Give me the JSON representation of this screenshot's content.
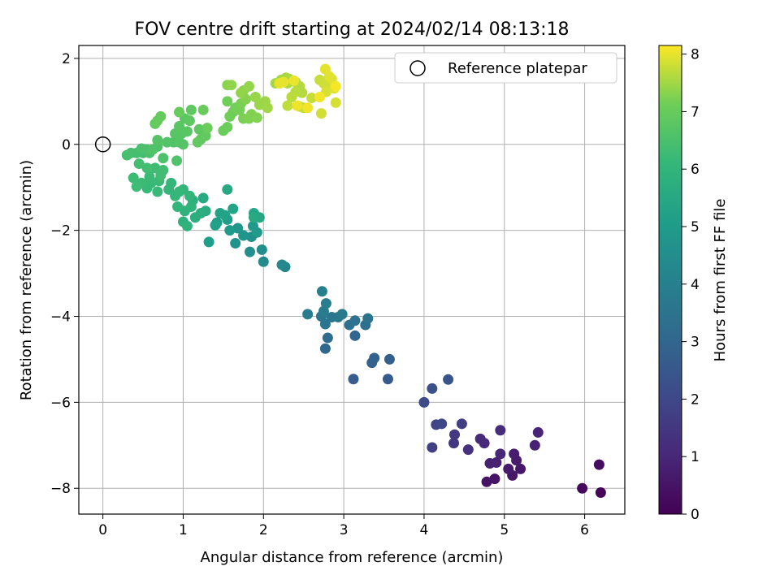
{
  "chart_data": {
    "type": "scatter",
    "title": "FOV centre drift starting at 2024/02/14 08:13:18",
    "xlabel": "Angular distance from reference (arcmin)",
    "ylabel": "Rotation from reference (arcmin)",
    "xlim": [
      -0.3,
      6.5
    ],
    "ylim": [
      -8.6,
      2.3
    ],
    "xticks": [
      "0",
      "1",
      "2",
      "3",
      "4",
      "5",
      "6"
    ],
    "yticks": [
      "−8",
      "−6",
      "−4",
      "−2",
      "0",
      "2"
    ],
    "grid": true,
    "legend": {
      "placement": "top-right",
      "entries": [
        "Reference platepar"
      ]
    },
    "reference_point": {
      "x": 0,
      "y": 0
    },
    "colorbar": {
      "label": "Hours from first FF file",
      "range": [
        0,
        8.15
      ],
      "ticks": [
        "0",
        "1",
        "2",
        "3",
        "4",
        "5",
        "6",
        "7",
        "8"
      ],
      "colormap": "viridis"
    },
    "series": [
      {
        "points": [
          [
            6.2,
            -8.1,
            0.1
          ],
          [
            5.97,
            -8.0,
            0.2
          ],
          [
            6.18,
            -7.45,
            0.3
          ],
          [
            4.78,
            -7.85,
            0.45
          ],
          [
            4.88,
            -7.78,
            0.5
          ],
          [
            5.1,
            -7.7,
            0.55
          ],
          [
            5.2,
            -7.55,
            0.6
          ],
          [
            5.05,
            -7.55,
            0.65
          ],
          [
            5.15,
            -7.35,
            0.7
          ],
          [
            5.12,
            -7.2,
            0.75
          ],
          [
            4.82,
            -7.42,
            0.8
          ],
          [
            4.9,
            -7.4,
            0.85
          ],
          [
            5.38,
            -7.0,
            0.9
          ],
          [
            5.42,
            -6.7,
            0.95
          ],
          [
            4.95,
            -7.2,
            1.0
          ],
          [
            4.75,
            -6.95,
            1.05
          ],
          [
            4.7,
            -6.85,
            1.1
          ],
          [
            4.95,
            -6.65,
            1.15
          ],
          [
            4.55,
            -7.1,
            1.3
          ],
          [
            4.37,
            -6.95,
            1.5
          ],
          [
            4.38,
            -6.75,
            1.55
          ],
          [
            4.47,
            -6.5,
            1.7
          ],
          [
            4.1,
            -7.05,
            1.8
          ],
          [
            4.15,
            -6.52,
            1.9
          ],
          [
            4.22,
            -6.5,
            2.0
          ],
          [
            4.0,
            -6.0,
            2.1
          ],
          [
            4.1,
            -5.68,
            2.3
          ],
          [
            4.3,
            -5.47,
            2.4
          ],
          [
            3.55,
            -5.46,
            2.6
          ],
          [
            3.12,
            -5.46,
            2.7
          ],
          [
            3.57,
            -5.0,
            2.8
          ],
          [
            3.35,
            -5.08,
            2.85
          ],
          [
            3.38,
            -4.97,
            2.9
          ],
          [
            3.14,
            -4.45,
            3.0
          ],
          [
            2.77,
            -4.75,
            3.1
          ],
          [
            2.8,
            -4.5,
            3.2
          ],
          [
            3.27,
            -4.2,
            3.3
          ],
          [
            3.07,
            -4.2,
            3.4
          ],
          [
            3.14,
            -4.1,
            3.45
          ],
          [
            3.3,
            -4.05,
            3.5
          ],
          [
            2.77,
            -4.18,
            3.55
          ],
          [
            2.72,
            -4.0,
            3.6
          ],
          [
            2.85,
            -4.02,
            3.65
          ],
          [
            2.93,
            -4.02,
            3.7
          ],
          [
            2.98,
            -3.95,
            3.75
          ],
          [
            2.55,
            -3.95,
            3.8
          ],
          [
            2.75,
            -3.88,
            3.85
          ],
          [
            2.78,
            -3.7,
            3.9
          ],
          [
            2.73,
            -3.42,
            3.95
          ],
          [
            2.27,
            -2.85,
            4.2
          ],
          [
            2.23,
            -2.8,
            4.3
          ],
          [
            2.0,
            -2.73,
            4.4
          ],
          [
            1.98,
            -2.45,
            4.5
          ],
          [
            1.83,
            -2.5,
            4.55
          ],
          [
            1.85,
            -2.15,
            4.6
          ],
          [
            1.65,
            -2.3,
            4.7
          ],
          [
            1.75,
            -2.12,
            4.75
          ],
          [
            1.68,
            -1.95,
            4.8
          ],
          [
            1.87,
            -1.9,
            4.9
          ],
          [
            1.92,
            -2.05,
            4.95
          ],
          [
            1.58,
            -2.0,
            5.0
          ],
          [
            1.42,
            -1.82,
            5.05
          ],
          [
            1.55,
            -1.75,
            5.1
          ],
          [
            1.32,
            -2.27,
            5.15
          ],
          [
            1.4,
            -1.88,
            5.2
          ],
          [
            1.52,
            -1.65,
            5.25
          ],
          [
            1.46,
            -1.6,
            5.3
          ],
          [
            1.62,
            -1.5,
            5.35
          ],
          [
            1.88,
            -1.6,
            5.4
          ],
          [
            1.95,
            -1.7,
            5.45
          ],
          [
            1.88,
            -1.7,
            5.5
          ],
          [
            1.55,
            -1.05,
            5.55
          ],
          [
            1.25,
            -1.25,
            5.6
          ],
          [
            1.28,
            -1.55,
            5.65
          ],
          [
            1.22,
            -1.6,
            5.7
          ],
          [
            1.15,
            -1.7,
            5.75
          ],
          [
            1.12,
            -1.3,
            5.8
          ],
          [
            1.0,
            -1.8,
            5.85
          ],
          [
            1.05,
            -1.9,
            5.9
          ],
          [
            1.02,
            -1.55,
            5.92
          ],
          [
            1.1,
            -1.45,
            5.95
          ],
          [
            1.08,
            -1.2,
            5.98
          ],
          [
            0.93,
            -1.45,
            6.0
          ],
          [
            1.0,
            -1.05,
            6.02
          ],
          [
            0.82,
            -1.05,
            6.05
          ],
          [
            0.85,
            -0.9,
            6.08
          ],
          [
            0.9,
            -1.2,
            6.1
          ],
          [
            0.95,
            -1.1,
            6.12
          ],
          [
            0.68,
            -1.1,
            6.14
          ],
          [
            0.55,
            -1.02,
            6.16
          ],
          [
            0.6,
            -0.9,
            6.18
          ],
          [
            0.7,
            -0.85,
            6.2
          ],
          [
            0.58,
            -0.75,
            6.22
          ],
          [
            0.48,
            -0.9,
            6.24
          ],
          [
            0.38,
            -0.78,
            6.26
          ],
          [
            0.42,
            -0.98,
            6.28
          ],
          [
            0.65,
            -0.55,
            6.3
          ],
          [
            0.75,
            -0.6,
            6.32
          ],
          [
            0.72,
            -0.72,
            6.34
          ],
          [
            0.55,
            -0.55,
            6.36
          ],
          [
            0.45,
            -0.45,
            6.38
          ],
          [
            0.5,
            -0.2,
            6.4
          ],
          [
            0.42,
            -0.2,
            6.42
          ],
          [
            0.35,
            -0.2,
            6.44
          ],
          [
            0.3,
            -0.25,
            6.46
          ],
          [
            0.48,
            -0.1,
            6.48
          ],
          [
            0.58,
            -0.2,
            6.5
          ],
          [
            0.55,
            -0.12,
            6.52
          ],
          [
            0.75,
            -0.32,
            6.54
          ],
          [
            0.68,
            -0.05,
            6.56
          ],
          [
            0.62,
            -0.12,
            6.58
          ],
          [
            0.92,
            -0.38,
            6.6
          ],
          [
            0.88,
            0.05,
            6.62
          ],
          [
            0.8,
            0.05,
            6.64
          ],
          [
            0.68,
            0.1,
            6.66
          ],
          [
            0.95,
            0.05,
            6.68
          ],
          [
            1.0,
            0.0,
            6.7
          ],
          [
            0.9,
            0.25,
            6.72
          ],
          [
            0.98,
            0.25,
            6.74
          ],
          [
            1.05,
            0.3,
            6.76
          ],
          [
            0.95,
            0.42,
            6.78
          ],
          [
            1.02,
            0.6,
            6.8
          ],
          [
            1.2,
            0.35,
            6.82
          ],
          [
            1.08,
            0.55,
            6.84
          ],
          [
            1.1,
            0.8,
            6.86
          ],
          [
            1.22,
            0.12,
            6.88
          ],
          [
            1.18,
            0.05,
            6.9
          ],
          [
            1.28,
            0.2,
            6.92
          ],
          [
            0.65,
            0.48,
            6.94
          ],
          [
            0.72,
            0.65,
            6.96
          ],
          [
            0.68,
            0.55,
            6.98
          ],
          [
            0.95,
            0.75,
            7.0
          ],
          [
            1.25,
            0.8,
            7.02
          ],
          [
            1.3,
            0.38,
            7.04
          ],
          [
            1.5,
            0.32,
            7.06
          ],
          [
            1.55,
            0.4,
            7.08
          ],
          [
            1.62,
            0.75,
            7.1
          ],
          [
            1.55,
            1.0,
            7.12
          ],
          [
            1.58,
            0.65,
            7.14
          ],
          [
            1.65,
            0.85,
            7.16
          ],
          [
            1.7,
            0.8,
            7.18
          ],
          [
            1.72,
            0.95,
            7.2
          ],
          [
            1.75,
            0.6,
            7.22
          ],
          [
            1.82,
            0.6,
            7.24
          ],
          [
            1.85,
            0.7,
            7.26
          ],
          [
            1.92,
            0.62,
            7.28
          ],
          [
            1.78,
            1.05,
            7.3
          ],
          [
            1.75,
            1.25,
            7.32
          ],
          [
            1.55,
            1.38,
            7.34
          ],
          [
            1.6,
            1.38,
            7.36
          ],
          [
            1.72,
            1.2,
            7.38
          ],
          [
            1.82,
            1.35,
            7.4
          ],
          [
            1.9,
            1.1,
            7.42
          ],
          [
            1.95,
            0.92,
            7.44
          ],
          [
            2.02,
            1.0,
            7.46
          ],
          [
            2.05,
            0.85,
            7.48
          ],
          [
            2.15,
            1.42,
            7.5
          ],
          [
            2.22,
            1.5,
            7.52
          ],
          [
            2.28,
            1.55,
            7.54
          ],
          [
            2.32,
            1.52,
            7.56
          ],
          [
            2.3,
            1.42,
            7.58
          ],
          [
            2.4,
            1.45,
            7.6
          ],
          [
            2.45,
            1.35,
            7.62
          ],
          [
            2.48,
            1.2,
            7.64
          ],
          [
            2.4,
            1.22,
            7.66
          ],
          [
            2.35,
            1.1,
            7.68
          ],
          [
            2.3,
            0.9,
            7.7
          ],
          [
            2.45,
            0.88,
            7.72
          ],
          [
            2.5,
            0.85,
            7.74
          ],
          [
            2.6,
            1.08,
            7.76
          ],
          [
            2.7,
            1.5,
            7.78
          ],
          [
            2.75,
            1.42,
            7.8
          ],
          [
            2.8,
            1.35,
            7.82
          ],
          [
            2.72,
            0.72,
            7.84
          ],
          [
            2.9,
            0.97,
            7.86
          ],
          [
            2.78,
            1.22,
            7.88
          ],
          [
            2.85,
            1.52,
            7.9
          ],
          [
            2.88,
            1.3,
            7.92
          ],
          [
            2.82,
            1.58,
            7.94
          ],
          [
            2.77,
            1.75,
            7.96
          ],
          [
            2.25,
            1.45,
            7.98
          ],
          [
            2.2,
            1.42,
            8.0
          ],
          [
            2.38,
            1.48,
            8.02
          ],
          [
            2.42,
            0.9,
            8.04
          ],
          [
            2.55,
            0.85,
            8.06
          ],
          [
            2.7,
            1.1,
            8.08
          ],
          [
            2.9,
            1.35,
            8.1
          ]
        ]
      }
    ]
  }
}
